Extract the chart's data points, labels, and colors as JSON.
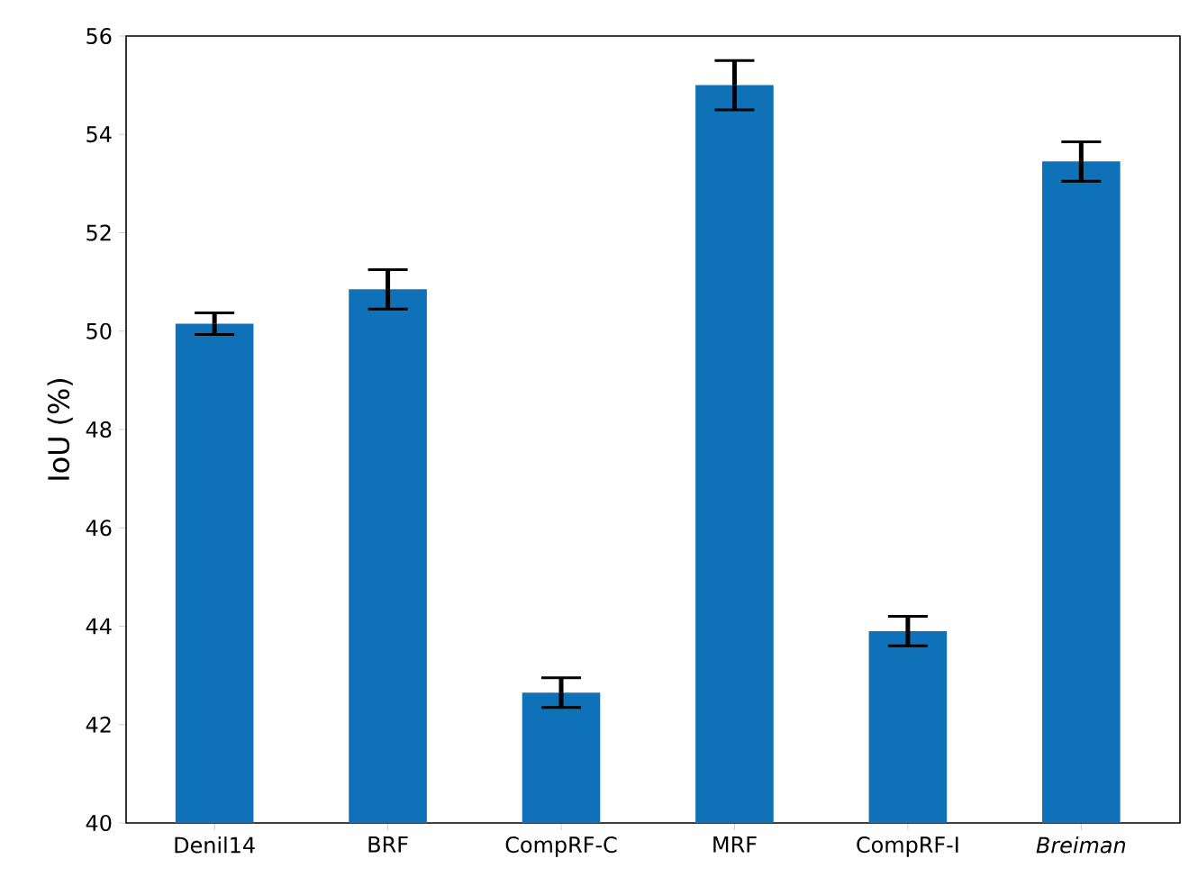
{
  "chart_data": {
    "type": "bar",
    "ylabel": "IoU (%)",
    "categories": [
      "Denil14",
      "BRF",
      "CompRF-C",
      "MRF",
      "CompRF-I",
      "*Breiman*"
    ],
    "values": [
      50.15,
      50.85,
      42.65,
      55.0,
      43.9,
      53.45
    ],
    "errors": [
      0.22,
      0.4,
      0.3,
      0.5,
      0.3,
      0.4
    ],
    "color": "#0f72b8",
    "ylim": [
      40,
      56
    ],
    "yticks": [
      40,
      42,
      44,
      46,
      48,
      50,
      52,
      54,
      56
    ],
    "grid": false
  }
}
